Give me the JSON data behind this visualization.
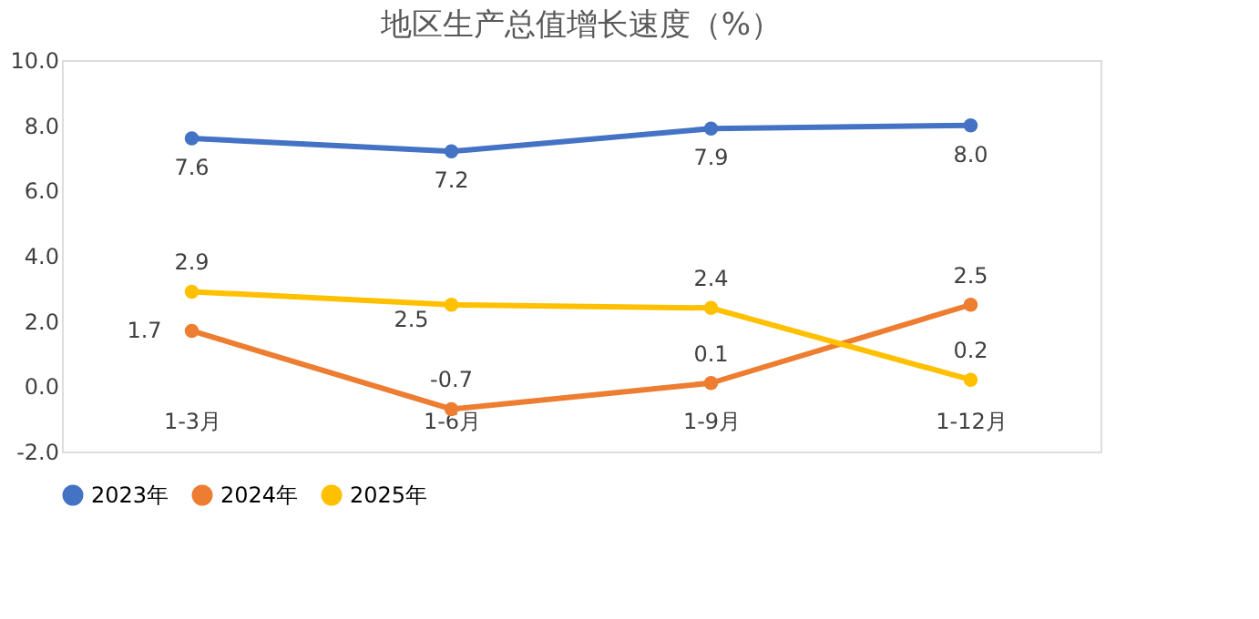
{
  "chart_data": {
    "type": "line",
    "title": "地区生产总值增长速度（%）",
    "categories": [
      "1-3月",
      "1-6月",
      "1-9月",
      "1-12月"
    ],
    "series": [
      {
        "name": "2023年",
        "color": "#4472c4",
        "values": [
          7.6,
          7.2,
          7.9,
          8.0
        ],
        "value_labels": [
          "7.6",
          "7.2",
          "7.9",
          "8.0"
        ]
      },
      {
        "name": "2024年",
        "color": "#ed7d31",
        "values": [
          1.7,
          -0.7,
          0.1,
          2.5
        ],
        "value_labels": [
          "1.7",
          "-0.7",
          "0.1",
          "2.5"
        ]
      },
      {
        "name": "2025年",
        "color": "#ffc000",
        "values": [
          2.9,
          2.5,
          2.4,
          0.2
        ],
        "value_labels": [
          "2.9",
          "2.5",
          "2.4",
          "0.2"
        ]
      }
    ],
    "ylim": [
      -2,
      10
    ],
    "yticks": [
      {
        "value": -2,
        "label": "-2.0"
      },
      {
        "value": 0,
        "label": "0.0"
      },
      {
        "value": 2,
        "label": "2.0"
      },
      {
        "value": 4,
        "label": "4.0"
      },
      {
        "value": 6,
        "label": "6.0"
      },
      {
        "value": 8,
        "label": "8.0"
      },
      {
        "value": 10,
        "label": "10.0"
      }
    ],
    "marker": "circle",
    "line_style": "solid",
    "grid": false,
    "legend": "bottom"
  }
}
